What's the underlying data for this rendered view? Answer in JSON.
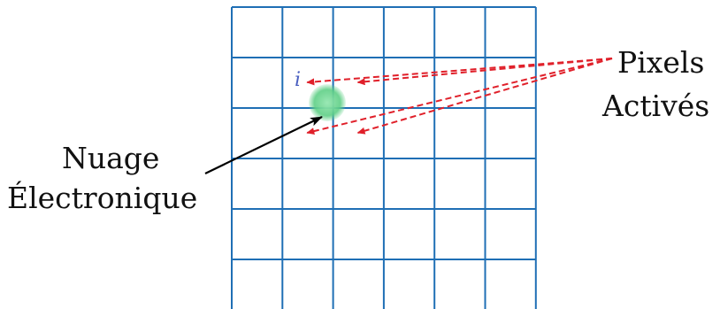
{
  "labels": {
    "cloud_line1": "Nuage",
    "cloud_line2": "Électronique",
    "pixels_line1": "Pixels",
    "pixels_line2": "Activés",
    "pixel_index": "i"
  },
  "colors": {
    "grid": "#1f6fb5",
    "activated_arrows": "#e0202a",
    "cloud": "#5fcf86",
    "pixel_label": "#4a5fc0",
    "pointer_arrow": "#000000",
    "text": "#111111"
  },
  "grid": {
    "columns": 6,
    "rows": 6
  },
  "activated_pixels": [
    {
      "column": 2,
      "row": 2
    },
    {
      "column": 3,
      "row": 2
    },
    {
      "column": 2,
      "row": 3
    },
    {
      "column": 3,
      "row": 3
    }
  ]
}
